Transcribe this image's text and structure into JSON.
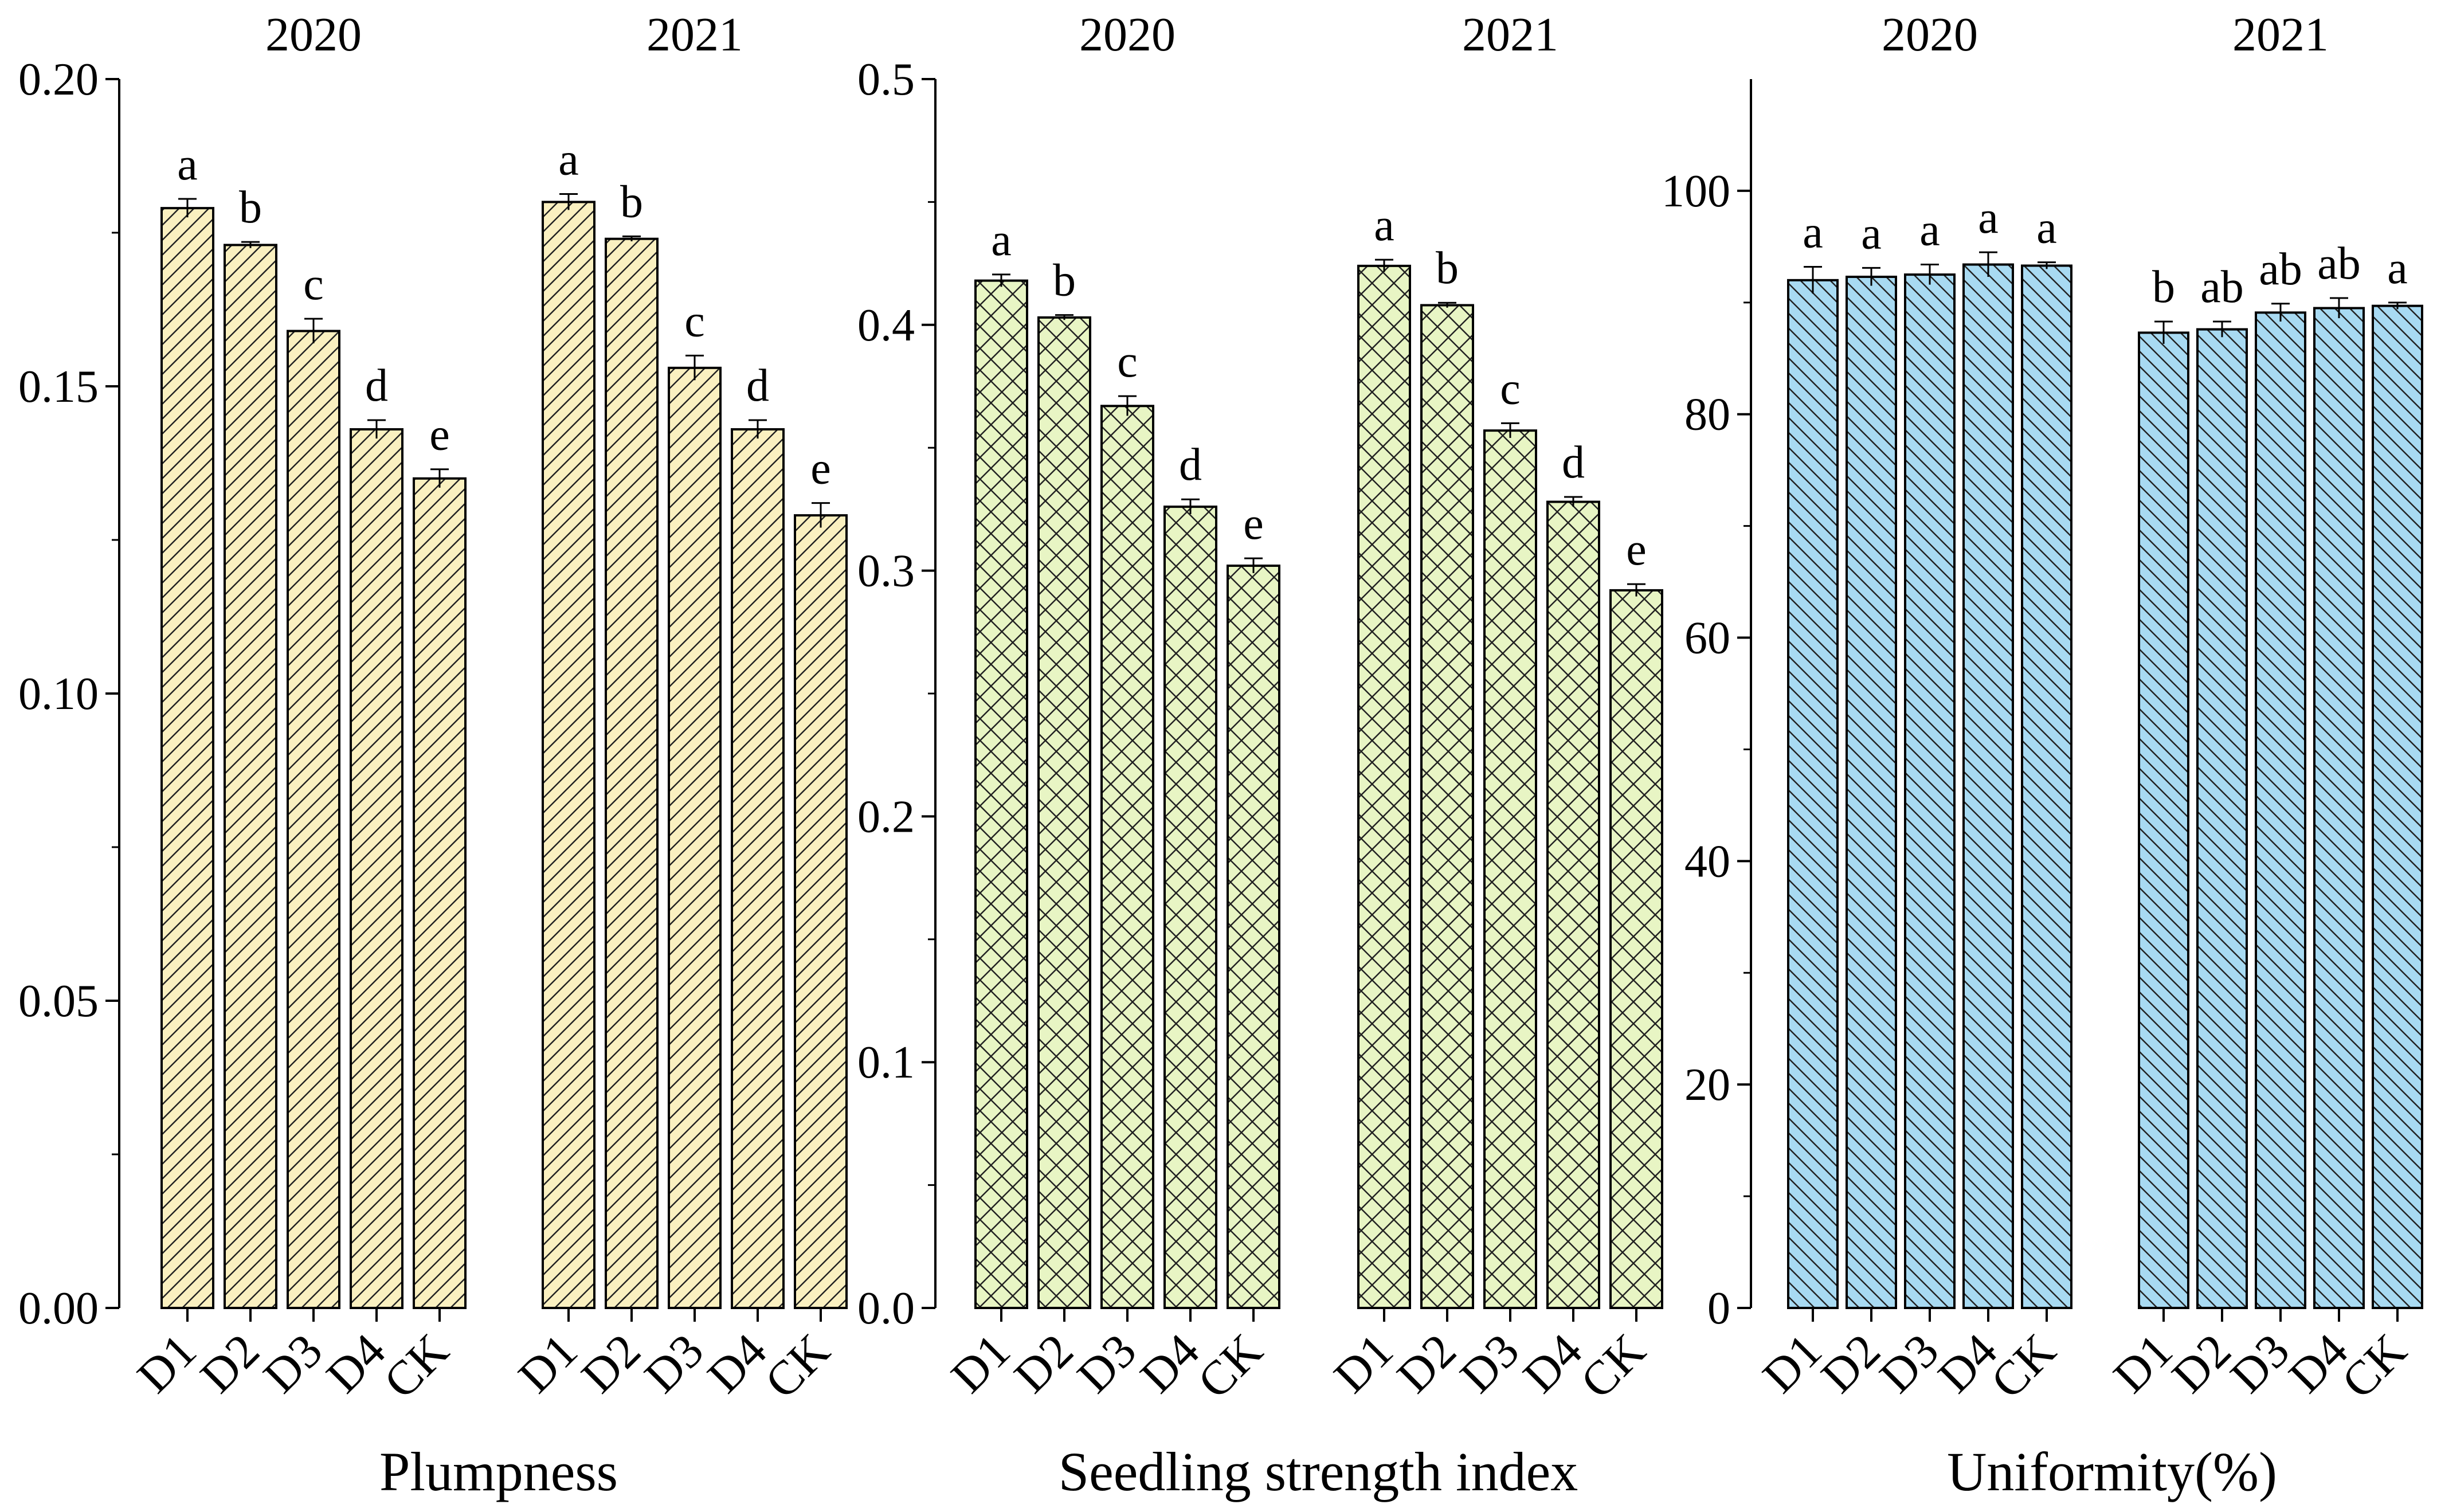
{
  "chart_data": [
    {
      "type": "bar",
      "title": "Plumpness",
      "xlabel": "Plumpness",
      "ylabel": "",
      "ylim": [
        0,
        0.2
      ],
      "yticks": [
        "0.00",
        "0.05",
        "0.10",
        "0.15",
        "0.20"
      ],
      "pattern": "diagonal-hatch",
      "bar_color": "#FAF0C0",
      "groups": [
        {
          "year": "2020",
          "categories": [
            "D1",
            "D2",
            "D3",
            "D4",
            "CK"
          ],
          "values": [
            0.179,
            0.173,
            0.159,
            0.143,
            0.135
          ],
          "errors": [
            0.0015,
            0.0005,
            0.002,
            0.0015,
            0.0015
          ],
          "letters": [
            "a",
            "b",
            "c",
            "d",
            "e"
          ]
        },
        {
          "year": "2021",
          "categories": [
            "D1",
            "D2",
            "D3",
            "D4",
            "CK"
          ],
          "values": [
            0.18,
            0.174,
            0.153,
            0.143,
            0.129
          ],
          "errors": [
            0.0013,
            0.0004,
            0.002,
            0.0015,
            0.002
          ],
          "letters": [
            "a",
            "b",
            "c",
            "d",
            "e"
          ]
        }
      ]
    },
    {
      "type": "bar",
      "title": "Seedling strength index",
      "xlabel": "Seedling strength index",
      "ylabel": "",
      "ylim": [
        0,
        0.5
      ],
      "yticks": [
        "0.0",
        "0.1",
        "0.2",
        "0.3",
        "0.4",
        "0.5"
      ],
      "pattern": "cross-hatch",
      "bar_color": "#E8F5C4",
      "groups": [
        {
          "year": "2020",
          "categories": [
            "D1",
            "D2",
            "D3",
            "D4",
            "CK"
          ],
          "values": [
            0.418,
            0.403,
            0.367,
            0.326,
            0.302
          ],
          "errors": [
            0.0025,
            0.001,
            0.004,
            0.003,
            0.003
          ],
          "letters": [
            "a",
            "b",
            "c",
            "d",
            "e"
          ]
        },
        {
          "year": "2021",
          "categories": [
            "D1",
            "D2",
            "D3",
            "D4",
            "CK"
          ],
          "values": [
            0.424,
            0.408,
            0.357,
            0.328,
            0.292
          ],
          "errors": [
            0.0025,
            0.001,
            0.003,
            0.002,
            0.0025
          ],
          "letters": [
            "a",
            "b",
            "c",
            "d",
            "e"
          ]
        }
      ]
    },
    {
      "type": "bar",
      "title": "Uniformity(%)",
      "xlabel": "Uniformity(%)",
      "ylabel": "",
      "ylim": [
        0,
        110
      ],
      "yticks": [
        "0",
        "20",
        "40",
        "60",
        "80",
        "100"
      ],
      "pattern": "backslash-hatch",
      "bar_color": "#A8DAF2",
      "groups": [
        {
          "year": "2020",
          "categories": [
            "D1",
            "D2",
            "D3",
            "D4",
            "CK"
          ],
          "values": [
            92.0,
            92.3,
            92.5,
            93.4,
            93.3
          ],
          "errors": [
            1.2,
            0.8,
            0.9,
            1.1,
            0.3
          ],
          "letters": [
            "a",
            "a",
            "a",
            "a",
            "a"
          ]
        },
        {
          "year": "2021",
          "categories": [
            "D1",
            "D2",
            "D3",
            "D4",
            "CK"
          ],
          "values": [
            87.3,
            87.6,
            89.1,
            89.5,
            89.7
          ],
          "errors": [
            1.0,
            0.7,
            0.8,
            0.9,
            0.3
          ],
          "letters": [
            "b",
            "ab",
            "ab",
            "ab",
            "a"
          ]
        }
      ]
    }
  ]
}
